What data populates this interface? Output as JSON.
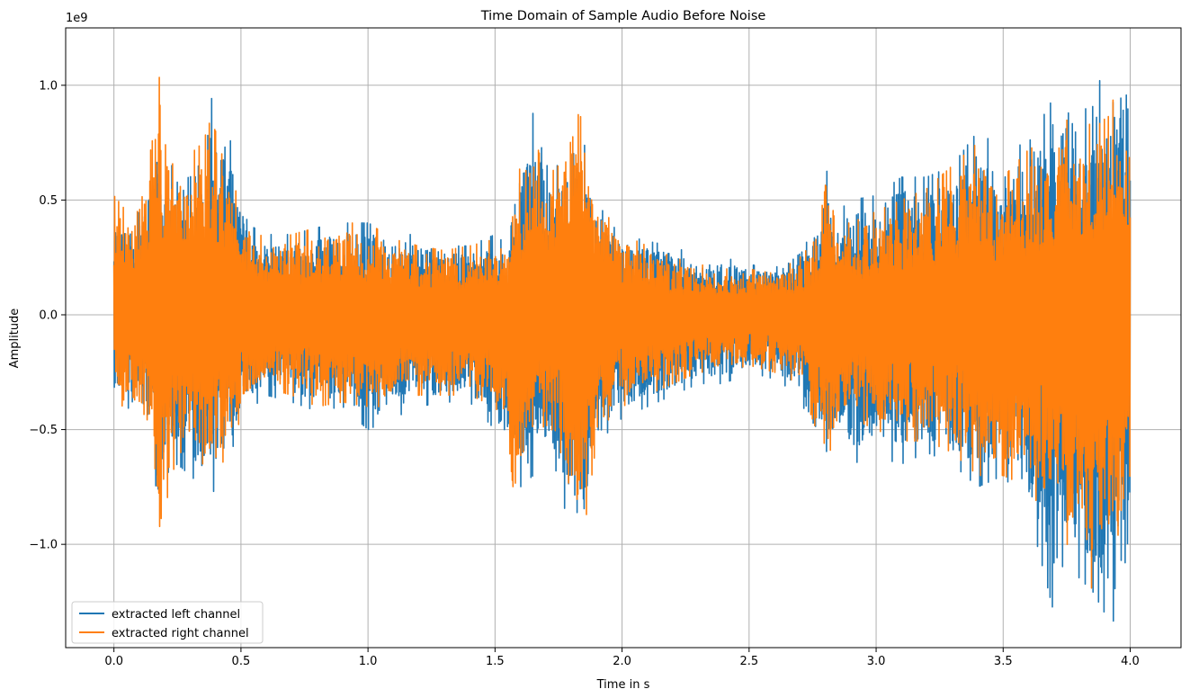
{
  "chart_data": {
    "type": "line",
    "title": "Time Domain of Sample Audio Before Noise",
    "xlabel": "Time in s",
    "ylabel": "Amplitude",
    "y_offset_label": "1e9",
    "xlim": [
      -0.19,
      4.2
    ],
    "ylim": [
      -1.45,
      1.25
    ],
    "x_ticks": [
      0.0,
      0.5,
      1.0,
      1.5,
      2.0,
      2.5,
      3.0,
      3.5,
      4.0
    ],
    "x_tick_labels": [
      "0.0",
      "0.5",
      "1.0",
      "1.5",
      "2.0",
      "2.5",
      "3.0",
      "3.5",
      "4.0"
    ],
    "y_ticks": [
      -1.0,
      -0.5,
      0.0,
      0.5,
      1.0
    ],
    "y_tick_labels": [
      "−1.0",
      "−0.5",
      "0.0",
      "0.5",
      "1.0"
    ],
    "grid": true,
    "legend_position": "lower-left",
    "series": [
      {
        "name": "extracted left channel",
        "color": "#1f77b4",
        "envelope": {
          "x": [
            0.0,
            0.05,
            0.1,
            0.15,
            0.18,
            0.2,
            0.25,
            0.3,
            0.35,
            0.38,
            0.4,
            0.45,
            0.5,
            0.55,
            0.6,
            0.7,
            0.8,
            0.9,
            1.0,
            1.1,
            1.2,
            1.3,
            1.4,
            1.5,
            1.55,
            1.57,
            1.6,
            1.65,
            1.7,
            1.75,
            1.8,
            1.85,
            1.9,
            1.95,
            2.0,
            2.1,
            2.2,
            2.3,
            2.4,
            2.5,
            2.6,
            2.7,
            2.78,
            2.8,
            2.85,
            2.9,
            3.0,
            3.1,
            3.2,
            3.3,
            3.4,
            3.5,
            3.6,
            3.7,
            3.75,
            3.8,
            3.85,
            3.9,
            3.95,
            4.0
          ],
          "upper": [
            0.45,
            0.4,
            0.45,
            0.6,
            0.7,
            0.65,
            0.65,
            0.75,
            0.8,
            0.97,
            0.85,
            0.8,
            0.55,
            0.38,
            0.35,
            0.35,
            0.38,
            0.4,
            0.4,
            0.35,
            0.35,
            0.3,
            0.3,
            0.35,
            0.3,
            0.6,
            0.7,
            0.88,
            0.65,
            0.65,
            0.8,
            0.75,
            0.5,
            0.4,
            0.35,
            0.32,
            0.3,
            0.25,
            0.25,
            0.22,
            0.2,
            0.3,
            0.35,
            0.65,
            0.45,
            0.5,
            0.52,
            0.6,
            0.6,
            0.65,
            0.8,
            0.72,
            0.75,
            0.95,
            0.9,
            0.75,
            1.05,
            1.0,
            1.1,
            1.05
          ],
          "lower": [
            -0.35,
            -0.4,
            -0.45,
            -0.55,
            -0.95,
            -0.7,
            -0.65,
            -0.7,
            -0.75,
            -0.8,
            -0.75,
            -0.65,
            -0.45,
            -0.4,
            -0.35,
            -0.38,
            -0.42,
            -0.4,
            -0.5,
            -0.45,
            -0.4,
            -0.38,
            -0.38,
            -0.5,
            -0.58,
            -0.65,
            -0.75,
            -0.7,
            -0.6,
            -0.7,
            -1.0,
            -0.95,
            -0.6,
            -0.5,
            -0.45,
            -0.4,
            -0.35,
            -0.3,
            -0.3,
            -0.25,
            -0.28,
            -0.35,
            -0.65,
            -0.6,
            -0.55,
            -0.65,
            -0.62,
            -0.65,
            -0.6,
            -0.65,
            -0.75,
            -0.7,
            -0.85,
            -1.3,
            -1.0,
            -1.15,
            -1.2,
            -1.3,
            -1.35,
            -0.9
          ]
        }
      },
      {
        "name": "extracted right channel",
        "color": "#ff7f0e",
        "envelope": {
          "x": [
            0.0,
            0.05,
            0.1,
            0.15,
            0.18,
            0.2,
            0.25,
            0.3,
            0.35,
            0.38,
            0.4,
            0.45,
            0.5,
            0.55,
            0.6,
            0.7,
            0.8,
            0.9,
            1.0,
            1.1,
            1.2,
            1.3,
            1.4,
            1.5,
            1.55,
            1.57,
            1.6,
            1.65,
            1.7,
            1.75,
            1.8,
            1.85,
            1.9,
            1.95,
            2.0,
            2.1,
            2.2,
            2.3,
            2.4,
            2.5,
            2.6,
            2.7,
            2.78,
            2.8,
            2.85,
            2.9,
            3.0,
            3.1,
            3.2,
            3.3,
            3.4,
            3.5,
            3.6,
            3.7,
            3.75,
            3.8,
            3.85,
            3.9,
            3.95,
            4.0
          ],
          "upper": [
            0.52,
            0.45,
            0.45,
            0.75,
            1.05,
            0.75,
            0.6,
            0.7,
            0.75,
            0.85,
            0.8,
            0.6,
            0.5,
            0.38,
            0.32,
            0.35,
            0.38,
            0.4,
            0.4,
            0.33,
            0.3,
            0.28,
            0.3,
            0.33,
            0.35,
            0.5,
            0.65,
            0.8,
            0.6,
            0.65,
            0.9,
            0.85,
            0.5,
            0.42,
            0.35,
            0.3,
            0.25,
            0.22,
            0.2,
            0.2,
            0.18,
            0.25,
            0.35,
            0.68,
            0.4,
            0.4,
            0.45,
            0.5,
            0.55,
            0.65,
            0.75,
            0.6,
            0.72,
            0.78,
            0.85,
            0.75,
            0.85,
            1.0,
            0.9,
            0.9
          ],
          "lower": [
            -0.3,
            -0.45,
            -0.45,
            -0.6,
            -1.1,
            -0.85,
            -0.6,
            -0.6,
            -0.65,
            -0.75,
            -0.7,
            -0.6,
            -0.45,
            -0.35,
            -0.32,
            -0.35,
            -0.4,
            -0.38,
            -0.4,
            -0.4,
            -0.35,
            -0.35,
            -0.35,
            -0.4,
            -0.5,
            -0.75,
            -0.7,
            -0.55,
            -0.55,
            -0.6,
            -1.0,
            -0.95,
            -0.55,
            -0.45,
            -0.4,
            -0.35,
            -0.3,
            -0.25,
            -0.25,
            -0.22,
            -0.25,
            -0.3,
            -0.55,
            -0.65,
            -0.5,
            -0.45,
            -0.5,
            -0.55,
            -0.55,
            -0.6,
            -0.7,
            -0.7,
            -0.75,
            -0.95,
            -1.0,
            -1.0,
            -1.2,
            -1.05,
            -1.15,
            -0.85
          ]
        }
      }
    ]
  }
}
